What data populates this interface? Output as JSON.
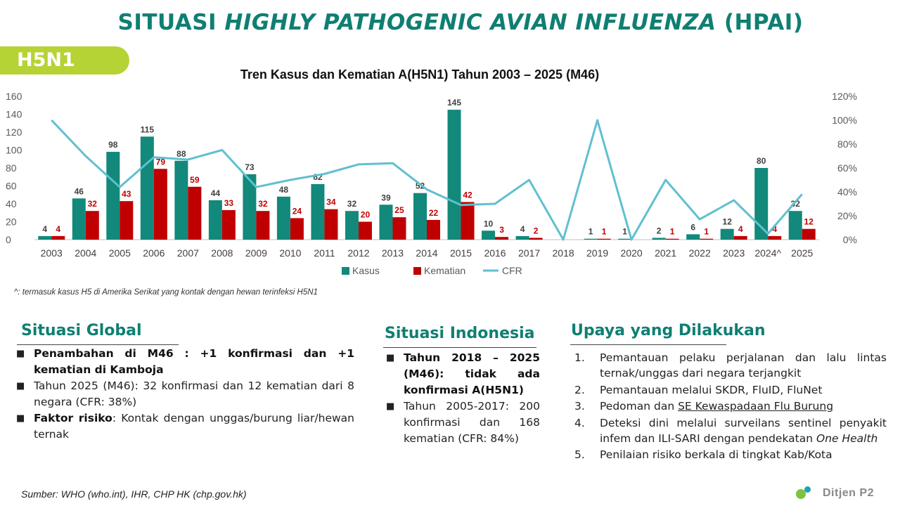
{
  "slide": {
    "title_prefix": "SITUASI",
    "title_italic": "HIGHLY PATHOGENIC AVIAN INFLUENZA",
    "title_suffix": "(HPAI)",
    "badge": "H5N1",
    "chart_title": "Tren Kasus dan Kematian A(H5N1) Tahun 2003 – 2025 (M46)",
    "footnote": "^: termasuk kasus H5 di Amerika Serikat yang kontak dengan hewan terinfeksi H5N1",
    "source": "Sumber: WHO (who.int), IHR, CHP HK (chp.gov.hk)",
    "logo_text": "Ditjen P2"
  },
  "global": {
    "title": "Situasi Global",
    "items": [
      {
        "bold": "Penambahan di M46 : +1 konfirmasi dan +1 kematian di Kamboja",
        "text": ""
      },
      {
        "bold": "",
        "text": "Tahun 2025 (M46): 32 konfirmasi dan 12 kematian dari 8 negara (CFR: 38%)"
      },
      {
        "bold": "Faktor risiko",
        "text": ": Kontak dengan unggas/burung liar/hewan ternak"
      }
    ]
  },
  "indonesia": {
    "title": "Situasi Indonesia",
    "items": [
      {
        "bold": "Tahun 2018 – 2025 (M46): tidak ada konfirmasi A(H5N1)",
        "text": ""
      },
      {
        "bold": "",
        "text": "Tahun 2005-2017: 200 konfirmasi dan 168 kematian (CFR: 84%)"
      }
    ]
  },
  "upaya": {
    "title": "Upaya yang Dilakukan",
    "items": [
      {
        "num": "1.",
        "text": "Pemantauan pelaku perjalanan dan lalu lintas ternak/unggas dari negara terjangkit"
      },
      {
        "num": "2.",
        "text": "Pemantauan melalui SKDR, FluID, FluNet"
      },
      {
        "num": "3.",
        "pre": "Pedoman dan ",
        "link": "SE Kewaspadaan Flu Burung"
      },
      {
        "num": "4.",
        "text": "Deteksi dini melalui surveilans sentinel penyakit infem dan ILI-SARI dengan pendekatan ",
        "italic": "One Health"
      },
      {
        "num": "5.",
        "text": "Penilaian risiko berkala di tingkat Kab/Kota"
      }
    ]
  },
  "chart_data": {
    "type": "bar",
    "title": "Tren Kasus dan Kematian A(H5N1) Tahun 2003 – 2025 (M46)",
    "categories": [
      "2003",
      "2004",
      "2005",
      "2006",
      "2007",
      "2008",
      "2009",
      "2010",
      "2011",
      "2012",
      "2013",
      "2014",
      "2015",
      "2016",
      "2017",
      "2018",
      "2019",
      "2020",
      "2021",
      "2022",
      "2023",
      "2024^",
      "2025"
    ],
    "series": [
      {
        "name": "Kasus",
        "kind": "bar",
        "color": "#12897a",
        "label_color": "#404040",
        "values": [
          4,
          46,
          98,
          115,
          88,
          44,
          73,
          48,
          62,
          32,
          39,
          52,
          145,
          10,
          4,
          0,
          1,
          1,
          2,
          6,
          12,
          80,
          32
        ]
      },
      {
        "name": "Kematian",
        "kind": "bar",
        "color": "#c00000",
        "label_color": "#c00000",
        "values": [
          4,
          32,
          43,
          79,
          59,
          33,
          32,
          24,
          34,
          20,
          25,
          22,
          42,
          3,
          2,
          0,
          1,
          0,
          1,
          1,
          4,
          4,
          12
        ]
      },
      {
        "name": "CFR",
        "kind": "line",
        "axis": "right",
        "color": "#5fc0d0",
        "values": [
          100,
          70,
          44,
          69,
          67,
          75,
          44,
          50,
          55,
          63,
          64,
          42,
          29,
          30,
          50,
          0,
          100,
          0,
          50,
          17,
          33,
          5,
          38
        ]
      }
    ],
    "data_labels_kasus": [
      "4",
      "46",
      "98",
      "115",
      "88",
      "44",
      "73",
      "48",
      "62",
      "32",
      "39",
      "52",
      "145",
      "10",
      "4",
      "",
      "1",
      "1",
      "2",
      "6",
      "12",
      "80",
      "32"
    ],
    "data_labels_kematian": [
      "4",
      "32",
      "43",
      "79",
      "59",
      "33",
      "32",
      "24",
      "34",
      "20",
      "25",
      "22",
      "42",
      "3",
      "2",
      "",
      "1",
      "",
      "1",
      "1",
      "4",
      "4",
      "12"
    ],
    "y_left": {
      "min": 0,
      "max": 160,
      "ticks": [
        "0",
        "20",
        "40",
        "60",
        "80",
        "100",
        "120",
        "140",
        "160"
      ]
    },
    "y_right": {
      "min": 0,
      "max": 120,
      "ticks": [
        "0%",
        "20%",
        "40%",
        "60%",
        "80%",
        "100%",
        "120%"
      ]
    },
    "legend": [
      "Kasus",
      "Kematian",
      "CFR"
    ],
    "legend_position": "bottom",
    "grid": false
  }
}
